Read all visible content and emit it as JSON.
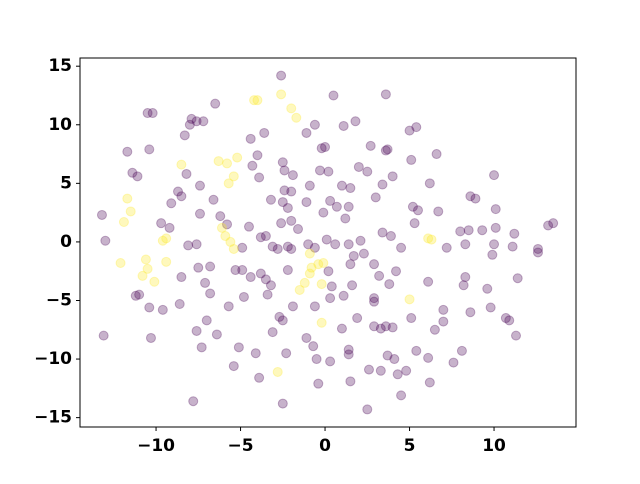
{
  "chart_data": {
    "type": "scatter",
    "xlim": [
      -14.5,
      14.85
    ],
    "ylim": [
      -15.8,
      15.7
    ],
    "xticks": [
      {
        "value": -10,
        "label": "−10"
      },
      {
        "value": -5,
        "label": "−5"
      },
      0,
      5,
      10
    ],
    "yticks": [
      {
        "value": -15,
        "label": "−15"
      },
      {
        "value": -10,
        "label": "−10"
      },
      {
        "value": -5,
        "label": "−5"
      },
      0,
      5,
      10,
      15
    ],
    "grid": false,
    "alpha": 0.3,
    "series": [
      {
        "color": "#440154",
        "x": [
          -13.2,
          -13.0,
          -13.1,
          -10.5,
          -10.2,
          -11.7,
          -10.4,
          -11.4,
          -11.1,
          -11.0,
          -11.2,
          -10.4,
          -10.3,
          -9.7,
          -9.2,
          -9.1,
          -8.7,
          -8.5,
          -8.2,
          -8.0,
          -7.9,
          -7.6,
          -7.2,
          -6.5,
          -8.3,
          -7.4,
          -7.4,
          -6.6,
          -6.2,
          -5.8,
          -8.1,
          -7.6,
          -8.5,
          -7.5,
          -6.8,
          -7.1,
          -6.8,
          -8.6,
          -9.6,
          -7.0,
          -5.7,
          -6.4,
          -7.6,
          -7.3,
          -5.3,
          -4.9,
          -4.8,
          -4.4,
          -3.8,
          -3.5,
          -3.4,
          -5.1,
          -5.4,
          -4.1,
          -3.9,
          -3.1,
          -2.3,
          -3.8,
          -3.5,
          -4.5,
          -3.2,
          -3.9,
          -4.3,
          -4.0,
          -4.4,
          -3.6,
          -2.5,
          -2.4,
          -1.9,
          -3.1,
          -2.8,
          -2.2,
          -2.0,
          -2.4,
          -2.0,
          -2.5,
          -2.2,
          -2.0,
          -1.6,
          -2.6,
          -1.1,
          -0.9,
          -0.3,
          0.2,
          -0.2,
          0.0,
          0.5,
          -1.1,
          -0.6,
          1.1,
          1.8,
          2.0,
          2.5,
          2.7,
          1.5,
          1.0,
          0.3,
          0.7,
          1.4,
          1.2,
          -0.1,
          0.1,
          -0.6,
          0.6,
          1.4,
          1.7,
          2.1,
          1.5,
          0.2,
          0.4,
          -1.9,
          -0.6,
          0.3,
          1.1,
          1.6,
          1.9,
          1.0,
          1.4,
          1.4,
          -1.1,
          -0.7,
          -0.5,
          0.3,
          -0.4,
          1.5,
          2.5,
          2.6,
          3.3,
          3.7,
          4.1,
          4.3,
          4.5,
          4.8,
          5.4,
          6.1,
          6.2,
          7.6,
          3.6,
          3.3,
          2.9,
          5.1,
          6.1,
          4.2,
          3.8,
          2.9,
          2.9,
          3.2,
          4.5,
          5.3,
          5.2,
          3.4,
          3.9,
          3.0,
          3.4,
          4.0,
          2.9,
          2.3,
          4.0,
          3.6,
          3.7,
          3.6,
          5.0,
          5.4,
          6.6,
          5.1,
          6.2,
          5.5,
          6.7,
          8.0,
          7.2,
          8.3,
          8.3,
          8.2,
          7.0,
          7.0,
          6.5,
          8.1,
          8.6,
          8.5,
          9.3,
          10.1,
          10.0,
          9.9,
          9.6,
          9.8,
          10.7,
          10.9,
          11.3,
          11.4,
          11.1,
          11.2,
          10.1,
          8.6,
          8.9,
          10.0,
          12.6,
          12.6,
          13.2,
          13.5,
          -2.5,
          -7.8,
          -2.7,
          -2.5,
          -3.2,
          -4.9,
          -1.0,
          -2.2,
          -2.6
        ],
        "y": [
          2.3,
          0.1,
          -8.0,
          11.0,
          11.0,
          7.7,
          7.9,
          5.9,
          5.6,
          -4.5,
          -4.6,
          -5.6,
          -8.2,
          1.6,
          1.2,
          3.3,
          4.3,
          3.9,
          5.8,
          10.0,
          10.5,
          10.3,
          10.3,
          11.8,
          9.1,
          4.8,
          2.4,
          3.6,
          2.2,
          1.5,
          -0.3,
          -0.2,
          -3.0,
          -2.2,
          -2.1,
          -3.5,
          -4.4,
          -5.3,
          -5.8,
          -6.7,
          -5.5,
          -7.9,
          -7.6,
          -9.0,
          -2.4,
          -2.4,
          -4.7,
          -3.0,
          -2.7,
          -3.2,
          -4.5,
          -9.0,
          -10.6,
          -9.5,
          -11.6,
          -7.7,
          -9.5,
          0.4,
          0.5,
          1.3,
          3.6,
          5.5,
          6.5,
          7.4,
          8.8,
          9.3,
          6.8,
          6.1,
          5.7,
          -0.4,
          -0.6,
          -0.4,
          -0.6,
          4.4,
          4.3,
          3.4,
          2.9,
          1.8,
          1.1,
          1.6,
          3.4,
          4.8,
          6.1,
          6.0,
          8.0,
          8.1,
          12.5,
          9.3,
          10.0,
          9.9,
          10.3,
          6.4,
          6.0,
          8.2,
          4.6,
          4.8,
          3.5,
          3.0,
          3.0,
          2.0,
          2.5,
          0.2,
          -0.5,
          -0.2,
          -0.2,
          -1.2,
          0.1,
          -1.9,
          -2.5,
          -3.8,
          -5.5,
          -5.5,
          -4.8,
          -4.6,
          -3.7,
          -6.5,
          -7.4,
          -9.2,
          -9.6,
          -8.2,
          -8.9,
          -10.0,
          -10.2,
          -12.1,
          -11.9,
          -14.3,
          -10.9,
          -11.0,
          -9.7,
          -10.0,
          -11.3,
          -13.1,
          -11.0,
          -9.3,
          -9.9,
          -12.0,
          -10.3,
          -7.2,
          -7.4,
          -7.2,
          -6.5,
          -3.4,
          -2.5,
          -3.6,
          -4.8,
          -5.1,
          -2.9,
          -0.5,
          1.6,
          3.0,
          0.8,
          0.5,
          3.8,
          4.9,
          5.6,
          -1.9,
          -1.0,
          -7.3,
          7.8,
          7.9,
          12.6,
          9.5,
          9.8,
          7.5,
          7.0,
          5.0,
          2.7,
          2.6,
          0.9,
          -0.5,
          -0.2,
          -3.0,
          -3.7,
          -5.8,
          -6.8,
          -7.5,
          -9.3,
          -6.0,
          1.0,
          1.0,
          1.2,
          -0.2,
          -1.1,
          -4.0,
          -5.6,
          -6.5,
          -6.7,
          -8.0,
          -3.1,
          -0.4,
          0.7,
          2.8,
          3.9,
          3.7,
          5.7,
          -0.6,
          -0.9,
          1.4,
          1.6,
          -13.8,
          -13.6,
          -6.4,
          -6.7,
          -3.7,
          -0.5,
          -0.2,
          -2.4,
          14.2
        ]
      },
      {
        "color": "#fde725",
        "x": [
          -2.6,
          -4.2,
          -4.0,
          -2.0,
          -1.7,
          -8.5,
          -6.3,
          -5.8,
          -5.2,
          -5.4,
          -5.7,
          -11.7,
          -11.5,
          -11.9,
          -9.4,
          -9.6,
          -6.1,
          -5.9,
          -5.6,
          -5.4,
          -12.1,
          -10.6,
          -10.5,
          -9.4,
          -10.8,
          -10.1,
          -0.9,
          -0.4,
          -0.1,
          -0.8,
          -0.9,
          -1.2,
          -1.5,
          -0.2,
          -0.2,
          -2.8,
          5.0,
          6.1,
          6.3
        ],
        "y": [
          12.6,
          12.1,
          12.1,
          11.4,
          10.6,
          6.6,
          6.9,
          6.7,
          7.2,
          5.6,
          5.0,
          3.7,
          2.6,
          1.7,
          0.3,
          0.1,
          1.2,
          0.5,
          0.0,
          -0.6,
          -1.8,
          -1.5,
          -2.3,
          -1.7,
          -2.9,
          -3.4,
          -1.0,
          -1.9,
          -1.8,
          -2.2,
          -2.7,
          -3.5,
          -4.1,
          -3.6,
          -6.9,
          -11.1,
          -4.9,
          0.3,
          0.2
        ]
      }
    ]
  }
}
